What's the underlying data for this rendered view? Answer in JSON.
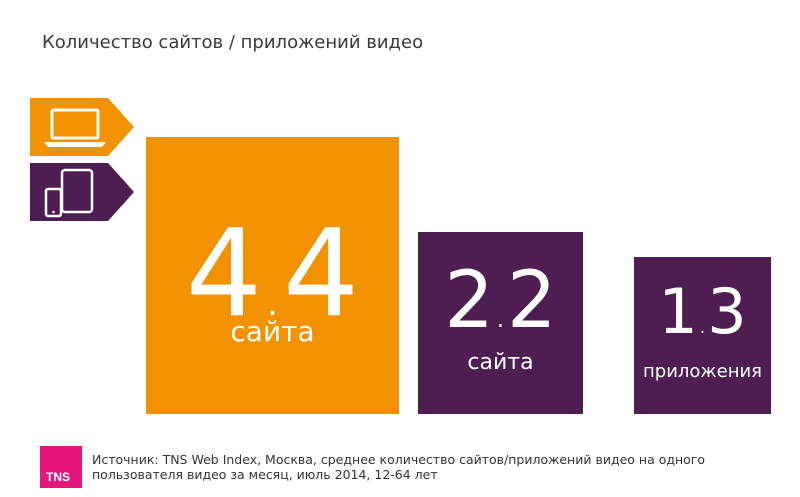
{
  "title": "Количество сайтов / приложений видео",
  "colors": {
    "orange": "#f39200",
    "purple": "#4e1e52",
    "tns_pink": "#e6147d"
  },
  "icons": {
    "desktop": "laptop-icon",
    "mobile": "phone-tablet-icon"
  },
  "chart_data": {
    "type": "bar",
    "title": "Количество сайтов / приложений видео",
    "categories": [
      "сайта",
      "сайта",
      "приложения"
    ],
    "values": [
      4.4,
      2.2,
      1.3
    ],
    "labels": [
      {
        "int": "4",
        "frac": "4",
        "unit": "сайта"
      },
      {
        "int": "2",
        "frac": "2",
        "unit": "сайта"
      },
      {
        "int": "1",
        "frac": "3",
        "unit": "приложения"
      }
    ],
    "bar_colors": [
      "#f39200",
      "#4e1e52",
      "#4e1e52"
    ]
  },
  "footer": {
    "logo": "TNS",
    "line1": "Источник: TNS Web Index, Москва, среднее количество сайтов/приложений видео на одного",
    "line2": "пользователя видео за месяц, июль 2014, 12-64 лет"
  }
}
